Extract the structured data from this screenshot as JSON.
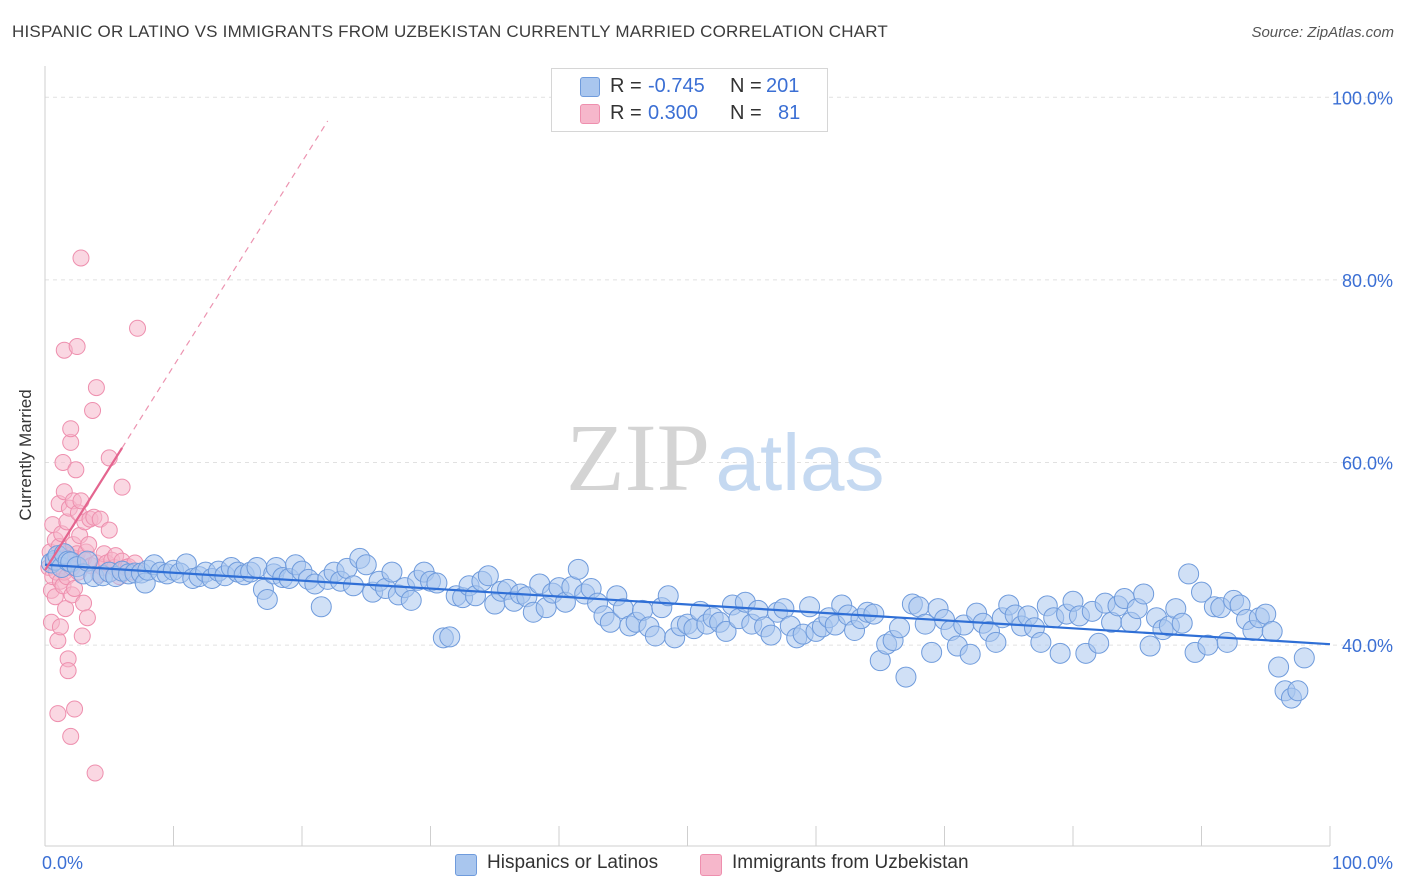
{
  "header": {
    "title": "HISPANIC OR LATINO VS IMMIGRANTS FROM UZBEKISTAN CURRENTLY MARRIED CORRELATION CHART",
    "source": "Source: ZipAtlas.com"
  },
  "legend": {
    "r_label": "R =",
    "n_label": "N =",
    "rows": [
      {
        "r": "-0.745",
        "n": "201"
      },
      {
        "r": "0.300",
        "n": "81"
      }
    ]
  },
  "bottom_legend": [
    "Hispanics or Latinos",
    "Immigrants from Uzbekistan"
  ],
  "watermark": {
    "zip": "ZIP",
    "atlas": "atlas"
  },
  "colors": {
    "blue_fill": "#a9c6ee",
    "blue_stroke": "#6f9bdc",
    "blue_line": "#2f6fd6",
    "pink_fill": "#f6b7cb",
    "pink_stroke": "#ee8fae",
    "pink_line": "#e4658f",
    "axis_text": "#3b6fd4",
    "grid": "#e1e1e1"
  },
  "chart_data": {
    "type": "scatter",
    "title": "HISPANIC OR LATINO VS IMMIGRANTS FROM UZBEKISTAN CURRENTLY MARRIED CORRELATION CHART",
    "xlabel": "",
    "ylabel": "Currently Married",
    "x_tick_labels": [
      "0.0%",
      "100.0%"
    ],
    "y_tick_labels": [
      "100.0%",
      "80.0%",
      "60.0%",
      "40.0%"
    ],
    "xlim": [
      0,
      100
    ],
    "ylim": [
      18,
      102
    ],
    "y_gridlines": [
      40,
      60,
      80,
      100
    ],
    "legend_position": "top-center",
    "series": [
      {
        "name": "Hispanics or Latinos",
        "color": "#a9c6ee",
        "trend": {
          "x0": 0,
          "y0": 48.8,
          "x1": 100,
          "y1": 40.1
        },
        "points": [
          [
            0.5,
            49.0
          ],
          [
            0.8,
            49.3
          ],
          [
            1.0,
            49.8
          ],
          [
            1.3,
            48.5
          ],
          [
            1.5,
            50.0
          ],
          [
            1.8,
            49.2
          ],
          [
            2.0,
            49.1
          ],
          [
            2.5,
            48.6
          ],
          [
            3.0,
            47.8
          ],
          [
            3.3,
            49.2
          ],
          [
            3.8,
            47.5
          ],
          [
            4.5,
            47.6
          ],
          [
            5.0,
            48.0
          ],
          [
            5.5,
            47.5
          ],
          [
            6.0,
            48.1
          ],
          [
            6.5,
            47.8
          ],
          [
            7.0,
            47.9
          ],
          [
            7.5,
            47.9
          ],
          [
            7.8,
            46.8
          ],
          [
            8.0,
            48.2
          ],
          [
            8.5,
            48.8
          ],
          [
            9.0,
            48.0
          ],
          [
            9.5,
            47.8
          ],
          [
            10.0,
            48.2
          ],
          [
            10.5,
            47.9
          ],
          [
            11.0,
            48.9
          ],
          [
            11.5,
            47.3
          ],
          [
            12.0,
            47.5
          ],
          [
            12.5,
            48.0
          ],
          [
            13.0,
            47.3
          ],
          [
            13.5,
            48.1
          ],
          [
            14.0,
            47.6
          ],
          [
            14.5,
            48.5
          ],
          [
            15.0,
            48.0
          ],
          [
            15.5,
            47.7
          ],
          [
            16.0,
            48.0
          ],
          [
            16.5,
            48.5
          ],
          [
            17.0,
            46.1
          ],
          [
            17.3,
            45.0
          ],
          [
            17.8,
            47.8
          ],
          [
            18.0,
            48.5
          ],
          [
            18.5,
            47.4
          ],
          [
            19.0,
            47.3
          ],
          [
            19.5,
            48.8
          ],
          [
            20.0,
            48.1
          ],
          [
            20.5,
            47.2
          ],
          [
            21.0,
            46.7
          ],
          [
            21.5,
            44.2
          ],
          [
            22.0,
            47.2
          ],
          [
            22.5,
            48.0
          ],
          [
            23.0,
            47.0
          ],
          [
            23.5,
            48.4
          ],
          [
            24.0,
            46.5
          ],
          [
            24.5,
            49.5
          ],
          [
            25.0,
            48.8
          ],
          [
            25.5,
            45.8
          ],
          [
            26.0,
            47.0
          ],
          [
            26.5,
            46.2
          ],
          [
            27.0,
            48.0
          ],
          [
            27.5,
            45.5
          ],
          [
            28.0,
            46.3
          ],
          [
            28.5,
            44.9
          ],
          [
            29.0,
            47.1
          ],
          [
            29.5,
            48.0
          ],
          [
            30.0,
            47.0
          ],
          [
            30.5,
            46.8
          ],
          [
            31.0,
            40.8
          ],
          [
            31.5,
            40.9
          ],
          [
            32.0,
            45.4
          ],
          [
            32.5,
            45.2
          ],
          [
            33.0,
            46.5
          ],
          [
            33.5,
            45.4
          ],
          [
            34.0,
            47.0
          ],
          [
            34.5,
            47.6
          ],
          [
            35.0,
            44.5
          ],
          [
            35.5,
            45.9
          ],
          [
            36.0,
            46.1
          ],
          [
            36.5,
            44.8
          ],
          [
            37.0,
            45.6
          ],
          [
            37.5,
            45.3
          ],
          [
            38.0,
            43.6
          ],
          [
            38.5,
            46.7
          ],
          [
            39.0,
            44.1
          ],
          [
            39.5,
            45.7
          ],
          [
            40.0,
            46.3
          ],
          [
            40.5,
            44.7
          ],
          [
            41.0,
            46.4
          ],
          [
            41.5,
            48.3
          ],
          [
            42.0,
            45.6
          ],
          [
            42.5,
            46.2
          ],
          [
            43.0,
            44.6
          ],
          [
            43.5,
            43.2
          ],
          [
            44.0,
            42.5
          ],
          [
            44.5,
            45.4
          ],
          [
            45.0,
            44.0
          ],
          [
            45.5,
            42.1
          ],
          [
            46.0,
            42.5
          ],
          [
            46.5,
            43.8
          ],
          [
            47.0,
            42.0
          ],
          [
            47.5,
            41.0
          ],
          [
            48.0,
            44.1
          ],
          [
            48.5,
            45.4
          ],
          [
            49.0,
            40.8
          ],
          [
            49.5,
            42.1
          ],
          [
            50.0,
            42.3
          ],
          [
            50.5,
            41.8
          ],
          [
            51.0,
            43.7
          ],
          [
            51.5,
            42.3
          ],
          [
            52.0,
            43.0
          ],
          [
            52.5,
            42.5
          ],
          [
            53.0,
            41.5
          ],
          [
            53.5,
            44.4
          ],
          [
            54.0,
            42.9
          ],
          [
            54.5,
            44.7
          ],
          [
            55.0,
            42.3
          ],
          [
            55.5,
            43.8
          ],
          [
            56.0,
            42.0
          ],
          [
            56.5,
            41.1
          ],
          [
            57.0,
            43.6
          ],
          [
            57.5,
            44.0
          ],
          [
            58.0,
            42.1
          ],
          [
            58.5,
            40.8
          ],
          [
            59.0,
            41.2
          ],
          [
            59.5,
            44.2
          ],
          [
            60.0,
            41.5
          ],
          [
            60.5,
            42.0
          ],
          [
            61.0,
            43.0
          ],
          [
            61.5,
            42.2
          ],
          [
            62.0,
            44.4
          ],
          [
            62.5,
            43.3
          ],
          [
            63.0,
            41.6
          ],
          [
            63.5,
            42.9
          ],
          [
            64.0,
            43.6
          ],
          [
            64.5,
            43.4
          ],
          [
            65.0,
            38.3
          ],
          [
            65.5,
            40.1
          ],
          [
            66.0,
            40.5
          ],
          [
            66.5,
            41.9
          ],
          [
            67.0,
            36.5
          ],
          [
            67.5,
            44.5
          ],
          [
            68.0,
            44.2
          ],
          [
            68.5,
            42.3
          ],
          [
            69.0,
            39.2
          ],
          [
            69.5,
            44.0
          ],
          [
            70.0,
            42.8
          ],
          [
            70.5,
            41.6
          ],
          [
            71.0,
            39.9
          ],
          [
            71.5,
            42.2
          ],
          [
            72.0,
            39.0
          ],
          [
            72.5,
            43.5
          ],
          [
            73.0,
            42.4
          ],
          [
            73.5,
            41.5
          ],
          [
            74.0,
            40.3
          ],
          [
            74.5,
            43.0
          ],
          [
            75.0,
            44.4
          ],
          [
            75.5,
            43.3
          ],
          [
            76.0,
            42.1
          ],
          [
            76.5,
            43.2
          ],
          [
            77.0,
            41.9
          ],
          [
            77.5,
            40.3
          ],
          [
            78.0,
            44.3
          ],
          [
            78.5,
            43.0
          ],
          [
            79.0,
            39.1
          ],
          [
            79.5,
            43.4
          ],
          [
            80.0,
            44.8
          ],
          [
            80.5,
            43.2
          ],
          [
            81.0,
            39.1
          ],
          [
            81.5,
            43.7
          ],
          [
            82.0,
            40.2
          ],
          [
            82.5,
            44.6
          ],
          [
            83.0,
            42.5
          ],
          [
            83.5,
            44.3
          ],
          [
            84.0,
            45.1
          ],
          [
            84.5,
            42.5
          ],
          [
            85.0,
            44.0
          ],
          [
            85.5,
            45.6
          ],
          [
            86.0,
            39.9
          ],
          [
            86.5,
            43.0
          ],
          [
            87.0,
            41.7
          ],
          [
            87.5,
            42.1
          ],
          [
            88.0,
            44.0
          ],
          [
            88.5,
            42.4
          ],
          [
            89.0,
            47.8
          ],
          [
            89.5,
            39.2
          ],
          [
            90.0,
            45.8
          ],
          [
            90.5,
            40.0
          ],
          [
            91.0,
            44.2
          ],
          [
            91.5,
            44.1
          ],
          [
            92.0,
            40.3
          ],
          [
            92.5,
            44.9
          ],
          [
            93.0,
            44.4
          ],
          [
            93.5,
            42.8
          ],
          [
            94.0,
            41.6
          ],
          [
            94.5,
            43.0
          ],
          [
            95.0,
            43.4
          ],
          [
            95.5,
            41.5
          ],
          [
            96.0,
            37.6
          ],
          [
            96.5,
            35.0
          ],
          [
            97.0,
            34.2
          ],
          [
            97.5,
            35.0
          ],
          [
            98.0,
            38.6
          ]
        ]
      },
      {
        "name": "Immigrants from Uzbekistan",
        "color": "#f6b7cb",
        "trend": {
          "x0": 0,
          "y0": 48.2,
          "x1": 6.0,
          "y1": 61.6
        },
        "trend_dashed_to": {
          "x": 22.0,
          "y": 97.4
        },
        "points": [
          [
            0.3,
            48.5
          ],
          [
            0.4,
            50.2
          ],
          [
            0.5,
            46.0
          ],
          [
            0.5,
            42.5
          ],
          [
            0.6,
            47.5
          ],
          [
            0.6,
            53.2
          ],
          [
            0.7,
            49.0
          ],
          [
            0.8,
            51.5
          ],
          [
            0.8,
            45.3
          ],
          [
            0.9,
            48.0
          ],
          [
            1.0,
            40.5
          ],
          [
            1.0,
            32.5
          ],
          [
            1.1,
            50.8
          ],
          [
            1.1,
            55.5
          ],
          [
            1.2,
            47.0
          ],
          [
            1.2,
            42.0
          ],
          [
            1.3,
            49.5
          ],
          [
            1.3,
            52.2
          ],
          [
            1.4,
            46.5
          ],
          [
            1.4,
            60.0
          ],
          [
            1.5,
            48.0
          ],
          [
            1.5,
            56.8
          ],
          [
            1.5,
            72.3
          ],
          [
            1.6,
            44.0
          ],
          [
            1.6,
            50.0
          ],
          [
            1.7,
            53.5
          ],
          [
            1.7,
            47.5
          ],
          [
            1.8,
            38.5
          ],
          [
            1.8,
            37.2
          ],
          [
            1.9,
            49.8
          ],
          [
            1.9,
            55.0
          ],
          [
            2.0,
            62.2
          ],
          [
            2.0,
            63.7
          ],
          [
            2.0,
            30.0
          ],
          [
            2.1,
            48.5
          ],
          [
            2.1,
            45.5
          ],
          [
            2.2,
            51.0
          ],
          [
            2.2,
            55.8
          ],
          [
            2.3,
            33.0
          ],
          [
            2.3,
            46.2
          ],
          [
            2.4,
            59.2
          ],
          [
            2.4,
            49.5
          ],
          [
            2.5,
            72.7
          ],
          [
            2.5,
            50.0
          ],
          [
            2.6,
            54.5
          ],
          [
            2.6,
            48.0
          ],
          [
            2.7,
            52.0
          ],
          [
            2.8,
            82.4
          ],
          [
            2.8,
            55.8
          ],
          [
            2.9,
            41.0
          ],
          [
            3.0,
            49.5
          ],
          [
            3.0,
            44.6
          ],
          [
            3.1,
            53.5
          ],
          [
            3.2,
            50.2
          ],
          [
            3.3,
            43.0
          ],
          [
            3.4,
            51.0
          ],
          [
            3.5,
            53.8
          ],
          [
            3.6,
            48.7
          ],
          [
            3.7,
            65.7
          ],
          [
            3.8,
            54.0
          ],
          [
            3.9,
            26.0
          ],
          [
            4.0,
            68.2
          ],
          [
            4.0,
            49.0
          ],
          [
            4.2,
            47.7
          ],
          [
            4.3,
            53.8
          ],
          [
            4.5,
            48.5
          ],
          [
            4.6,
            50.0
          ],
          [
            4.8,
            49.0
          ],
          [
            5.0,
            52.6
          ],
          [
            5.0,
            60.5
          ],
          [
            5.2,
            49.3
          ],
          [
            5.4,
            48.5
          ],
          [
            5.5,
            49.8
          ],
          [
            5.8,
            47.5
          ],
          [
            6.0,
            57.3
          ],
          [
            6.0,
            49.2
          ],
          [
            6.3,
            48.5
          ],
          [
            6.5,
            48.6
          ],
          [
            6.8,
            48.0
          ],
          [
            7.0,
            49.0
          ],
          [
            7.2,
            74.7
          ]
        ]
      }
    ]
  }
}
